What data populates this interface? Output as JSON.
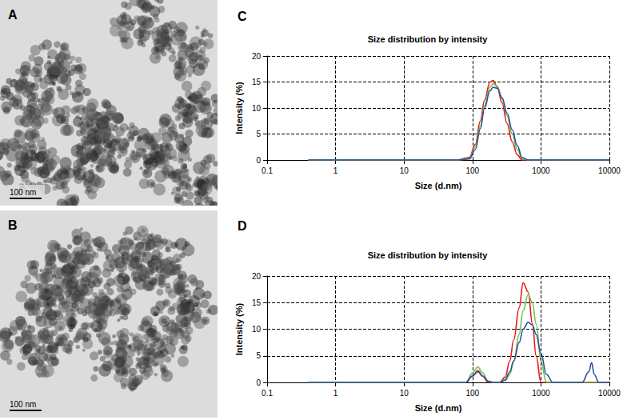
{
  "images": [
    {
      "panel": "A",
      "scale_bar": "100 nm"
    },
    {
      "panel": "B",
      "scale_bar": "100 nm"
    }
  ],
  "chart_data": [
    {
      "panel": "C",
      "type": "line",
      "title": "Size distribution by intensity",
      "x_label": "Size (d.nm)",
      "y_label": "Intensity (%)",
      "log": "x",
      "grid": true,
      "xlim": [
        0.1,
        10000
      ],
      "xticks": [
        0.1,
        1,
        10,
        100,
        1000,
        10000
      ],
      "ylim": [
        0,
        20
      ],
      "yticks": [
        0,
        5,
        10,
        15,
        20
      ],
      "x": [
        0.4,
        1,
        10,
        60,
        90,
        110,
        130,
        150,
        180,
        200,
        230,
        270,
        320,
        380,
        450,
        530,
        650,
        1000,
        10000
      ],
      "series": [
        {
          "color": "#e31a1c",
          "values": [
            0,
            0,
            0,
            0,
            0.5,
            3,
            7.5,
            11.5,
            15,
            15.3,
            14,
            11,
            7,
            3.5,
            1,
            0,
            0,
            0,
            0
          ]
        },
        {
          "color": "#6cc24a",
          "values": [
            0,
            0,
            0,
            0,
            0.3,
            2.5,
            6.5,
            10.5,
            14,
            14.7,
            14.2,
            11.8,
            8.5,
            5,
            2,
            0.3,
            0,
            0,
            0
          ]
        },
        {
          "color": "#2b4fa0",
          "values": [
            0,
            0,
            0,
            0,
            0.2,
            2,
            6,
            10,
            13.3,
            14,
            13.8,
            12,
            9,
            5.8,
            2.8,
            0.5,
            0,
            0,
            0
          ]
        }
      ]
    },
    {
      "panel": "D",
      "type": "line",
      "title": "Size distribution by intensity",
      "x_label": "Size (d.nm)",
      "y_label": "Intensity (%)",
      "log": "x",
      "grid": true,
      "xlim": [
        0.1,
        10000
      ],
      "xticks": [
        0.1,
        1,
        10,
        100,
        1000,
        10000
      ],
      "ylim": [
        0,
        20
      ],
      "yticks": [
        0,
        5,
        10,
        15,
        20
      ],
      "x": [
        0.4,
        10,
        80,
        100,
        120,
        140,
        170,
        200,
        250,
        300,
        350,
        400,
        480,
        550,
        650,
        750,
        850,
        1000,
        1200,
        1500,
        3000,
        4000,
        5000,
        5500,
        6000,
        7000,
        10000
      ],
      "series": [
        {
          "color": "#e31a1c",
          "values": [
            0,
            0,
            0,
            1.2,
            2.2,
            1.2,
            0,
            0,
            0,
            1,
            4,
            8,
            14,
            18.7,
            17,
            11,
            5,
            0,
            0,
            0,
            0,
            0,
            0,
            0,
            0,
            0,
            0
          ]
        },
        {
          "color": "#6cc24a",
          "values": [
            0,
            0,
            0,
            1.8,
            2.9,
            1.8,
            0.2,
            0,
            0,
            0.3,
            1.5,
            4,
            9,
            13.5,
            16.5,
            15,
            11,
            4,
            0,
            0,
            0,
            0,
            0,
            0,
            0,
            0,
            0
          ]
        },
        {
          "color": "#2b4fa0",
          "values": [
            0,
            0,
            0,
            1.2,
            2,
            1.2,
            0.2,
            0,
            0,
            0.5,
            2,
            4,
            7.5,
            10,
            11.3,
            10.8,
            9,
            5.5,
            1.5,
            0,
            0,
            0,
            2,
            3.7,
            1.5,
            0,
            0
          ]
        }
      ]
    }
  ]
}
